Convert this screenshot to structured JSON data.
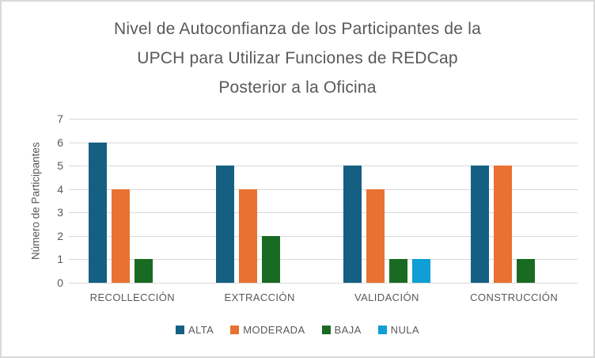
{
  "colors": {
    "border": "#D9D9D9",
    "grid": "#D9D9D9",
    "axis_text": "#595959",
    "title_text": "#595959",
    "plot_background": "#FFFFFF"
  },
  "chart_data": {
    "type": "bar",
    "title": "Nivel de Autoconfianza de los Participantes de la UPCH para Utilizar Funciones de REDCap Posterior a la Oficina",
    "title_lines": [
      "Nivel de Autoconfianza de los Participantes de la",
      "UPCH para Utilizar Funciones de REDCap",
      "Posterior a la Oficina"
    ],
    "xlabel": "",
    "ylabel": "Número de Participantes",
    "ylim": [
      0,
      7
    ],
    "ytick_step": 1,
    "yticks": [
      0,
      1,
      2,
      3,
      4,
      5,
      6,
      7
    ],
    "grid": "horizontal",
    "legend_position": "bottom",
    "categories": [
      "RECOLLECCIÓN",
      "EXTRACCIÓN",
      "VALIDACIÓN",
      "CONSTRUCCIÓN"
    ],
    "series": [
      {
        "name": "ALTA",
        "color": "#156082",
        "values": [
          6,
          5,
          5,
          5
        ]
      },
      {
        "name": "MODERADA",
        "color": "#E97132",
        "values": [
          4,
          4,
          4,
          5
        ]
      },
      {
        "name": "BAJA",
        "color": "#196B24",
        "values": [
          1,
          2,
          1,
          1
        ]
      },
      {
        "name": "NULA",
        "color": "#0F9ED5",
        "values": [
          0,
          0,
          1,
          0
        ]
      }
    ]
  }
}
